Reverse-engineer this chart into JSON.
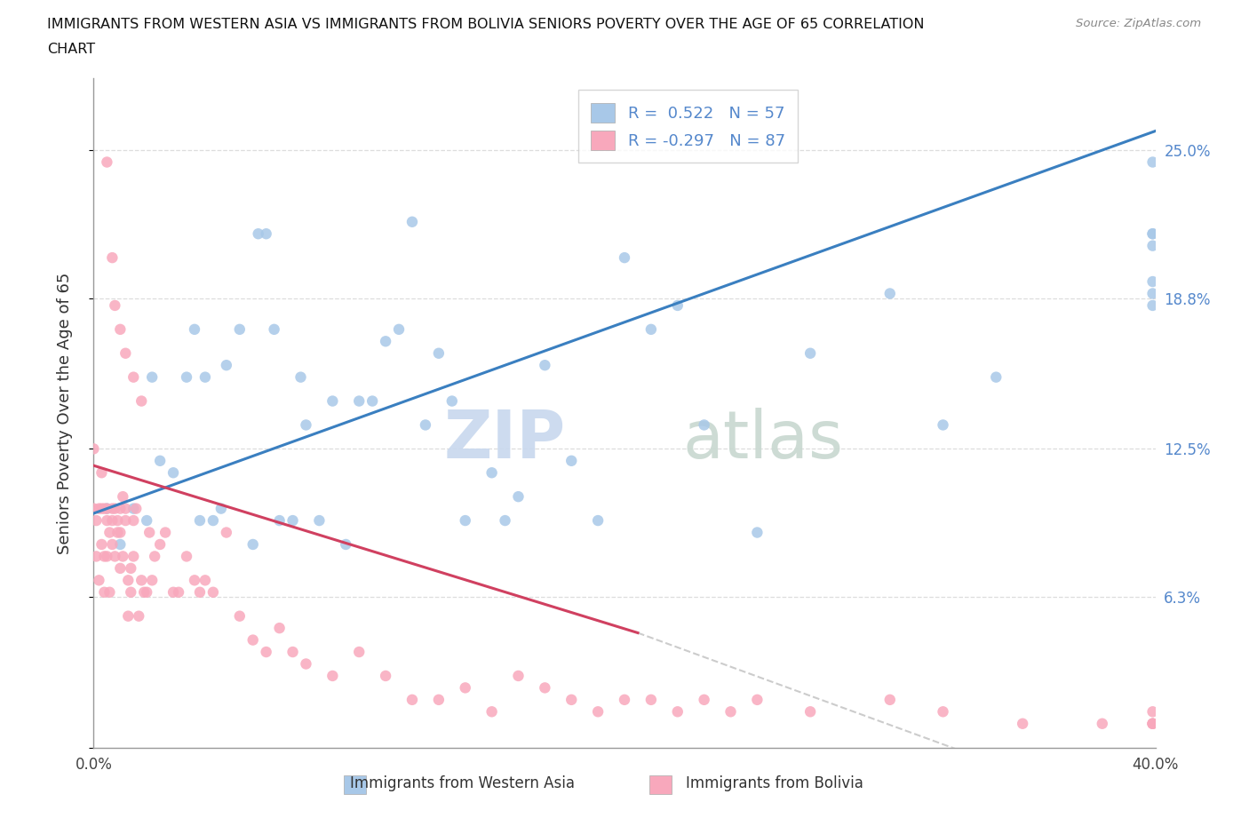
{
  "title_line1": "IMMIGRANTS FROM WESTERN ASIA VS IMMIGRANTS FROM BOLIVIA SENIORS POVERTY OVER THE AGE OF 65 CORRELATION",
  "title_line2": "CHART",
  "source": "Source: ZipAtlas.com",
  "ylabel": "Seniors Poverty Over the Age of 65",
  "xlim": [
    0.0,
    0.4
  ],
  "ylim": [
    0.0,
    0.28
  ],
  "yticks": [
    0.0,
    0.063,
    0.125,
    0.188,
    0.25
  ],
  "ytick_labels": [
    "",
    "6.3%",
    "12.5%",
    "18.8%",
    "25.0%"
  ],
  "xticks": [
    0.0,
    0.1,
    0.2,
    0.3,
    0.4
  ],
  "xtick_labels": [
    "0.0%",
    "",
    "",
    "",
    "40.0%"
  ],
  "r_western": 0.522,
  "n_western": 57,
  "r_bolivia": -0.297,
  "n_bolivia": 87,
  "color_western": "#a8c8e8",
  "color_bolivia": "#f8a8bc",
  "line_color_western": "#3a7fc0",
  "line_color_bolivia": "#d04060",
  "dash_color": "#cccccc",
  "right_tick_color": "#5588cc",
  "grid_color": "#dddddd",
  "spine_color": "#999999",
  "western_asia_x": [
    0.005,
    0.01,
    0.015,
    0.02,
    0.022,
    0.025,
    0.03,
    0.035,
    0.038,
    0.04,
    0.042,
    0.045,
    0.048,
    0.05,
    0.055,
    0.06,
    0.062,
    0.065,
    0.068,
    0.07,
    0.075,
    0.078,
    0.08,
    0.085,
    0.09,
    0.095,
    0.1,
    0.105,
    0.11,
    0.115,
    0.12,
    0.125,
    0.13,
    0.135,
    0.14,
    0.15,
    0.155,
    0.16,
    0.17,
    0.18,
    0.19,
    0.2,
    0.21,
    0.22,
    0.23,
    0.25,
    0.27,
    0.3,
    0.32,
    0.34,
    0.55,
    0.6,
    0.62,
    0.65,
    0.68,
    0.7,
    0.72
  ],
  "western_asia_y": [
    0.1,
    0.085,
    0.1,
    0.095,
    0.155,
    0.12,
    0.115,
    0.155,
    0.175,
    0.095,
    0.155,
    0.095,
    0.1,
    0.16,
    0.175,
    0.085,
    0.215,
    0.215,
    0.175,
    0.095,
    0.095,
    0.155,
    0.135,
    0.095,
    0.145,
    0.085,
    0.145,
    0.145,
    0.17,
    0.175,
    0.22,
    0.135,
    0.165,
    0.145,
    0.095,
    0.115,
    0.095,
    0.105,
    0.16,
    0.12,
    0.095,
    0.205,
    0.175,
    0.185,
    0.135,
    0.09,
    0.165,
    0.19,
    0.135,
    0.155,
    0.215,
    0.19,
    0.195,
    0.215,
    0.245,
    0.21,
    0.185
  ],
  "bolivia_x": [
    0.0,
    0.0,
    0.001,
    0.001,
    0.002,
    0.002,
    0.003,
    0.003,
    0.003,
    0.004,
    0.004,
    0.004,
    0.005,
    0.005,
    0.005,
    0.006,
    0.006,
    0.007,
    0.007,
    0.007,
    0.008,
    0.008,
    0.009,
    0.009,
    0.01,
    0.01,
    0.01,
    0.011,
    0.011,
    0.012,
    0.012,
    0.013,
    0.013,
    0.014,
    0.014,
    0.015,
    0.015,
    0.016,
    0.017,
    0.018,
    0.019,
    0.02,
    0.021,
    0.022,
    0.023,
    0.025,
    0.027,
    0.03,
    0.032,
    0.035,
    0.038,
    0.04,
    0.042,
    0.045,
    0.05,
    0.055,
    0.06,
    0.065,
    0.07,
    0.075,
    0.08,
    0.09,
    0.1,
    0.11,
    0.12,
    0.13,
    0.14,
    0.15,
    0.16,
    0.17,
    0.18,
    0.19,
    0.2,
    0.21,
    0.22,
    0.23,
    0.24,
    0.25,
    0.27,
    0.3,
    0.32,
    0.35,
    0.38,
    0.4,
    0.42,
    0.45,
    0.5
  ],
  "bolivia_y": [
    0.1,
    0.125,
    0.095,
    0.08,
    0.1,
    0.07,
    0.115,
    0.085,
    0.1,
    0.08,
    0.065,
    0.1,
    0.095,
    0.08,
    0.1,
    0.09,
    0.065,
    0.1,
    0.085,
    0.095,
    0.1,
    0.08,
    0.09,
    0.095,
    0.075,
    0.1,
    0.09,
    0.08,
    0.105,
    0.095,
    0.1,
    0.055,
    0.07,
    0.065,
    0.075,
    0.08,
    0.095,
    0.1,
    0.055,
    0.07,
    0.065,
    0.065,
    0.09,
    0.07,
    0.08,
    0.085,
    0.09,
    0.065,
    0.065,
    0.08,
    0.07,
    0.065,
    0.07,
    0.065,
    0.09,
    0.055,
    0.045,
    0.04,
    0.05,
    0.04,
    0.035,
    0.03,
    0.04,
    0.03,
    0.02,
    0.02,
    0.025,
    0.015,
    0.03,
    0.025,
    0.02,
    0.015,
    0.02,
    0.02,
    0.015,
    0.02,
    0.015,
    0.02,
    0.015,
    0.02,
    0.015,
    0.01,
    0.01,
    0.015,
    0.01,
    0.01,
    0.01
  ],
  "bolivia_outliers_x": [
    0.005,
    0.007,
    0.008,
    0.01,
    0.012,
    0.015,
    0.018
  ],
  "bolivia_outliers_y": [
    0.245,
    0.205,
    0.185,
    0.175,
    0.165,
    0.155,
    0.145
  ],
  "marker_size": 80
}
